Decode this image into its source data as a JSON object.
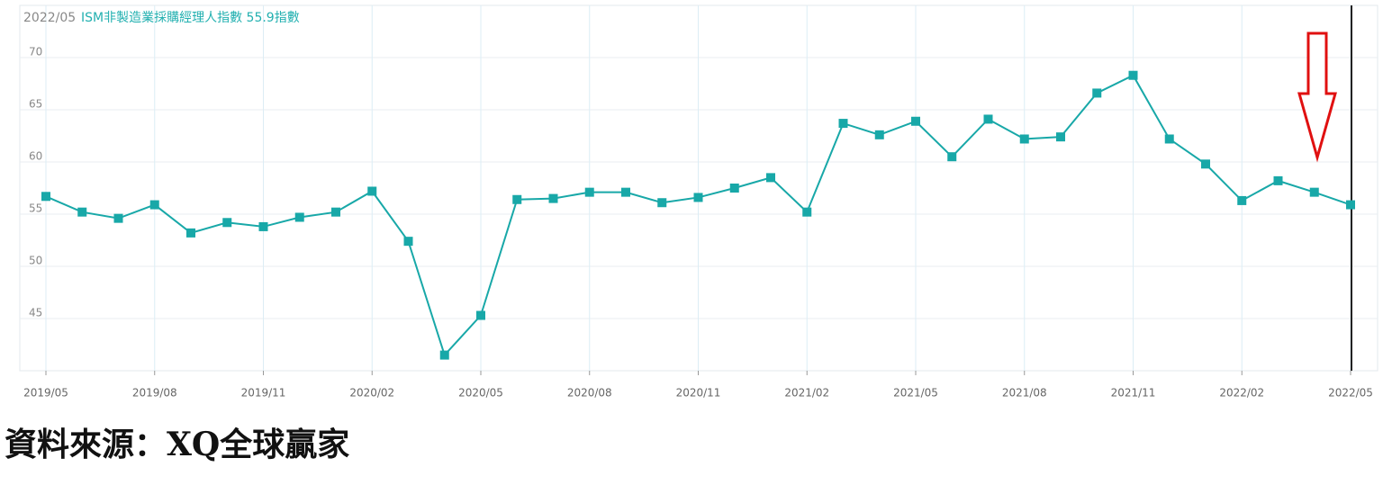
{
  "chart_data": {
    "type": "line",
    "date_label": "2022/05",
    "title": "ISM非製造業採購經理人指數 55.9指數",
    "categories": [
      "2019/05",
      null,
      null,
      "2019/08",
      null,
      null,
      "2019/11",
      null,
      null,
      "2020/02",
      null,
      null,
      "2020/05",
      null,
      null,
      "2020/08",
      null,
      null,
      "2020/11",
      null,
      null,
      "2021/02",
      null,
      null,
      "2021/05",
      null,
      null,
      "2021/08",
      null,
      null,
      "2021/11",
      null,
      null,
      "2022/02",
      null,
      null,
      "2022/05"
    ],
    "series": [
      {
        "name": "ISM非製造業採購經理人指數",
        "color": "#18a8a8",
        "values": [
          56.7,
          55.2,
          54.6,
          55.9,
          53.2,
          54.2,
          53.8,
          54.7,
          55.2,
          57.2,
          52.4,
          41.5,
          45.3,
          56.4,
          56.5,
          57.1,
          57.1,
          56.1,
          56.6,
          57.5,
          58.5,
          55.2,
          63.7,
          62.6,
          63.9,
          60.5,
          64.1,
          62.2,
          62.4,
          66.6,
          68.3,
          62.2,
          59.8,
          56.3,
          58.2,
          57.1,
          55.9
        ]
      }
    ],
    "ylim": [
      40,
      75
    ],
    "yticks": [
      45,
      50,
      55,
      60,
      65,
      70
    ],
    "grid": true,
    "source": "資料來源：XQ全球贏家"
  }
}
